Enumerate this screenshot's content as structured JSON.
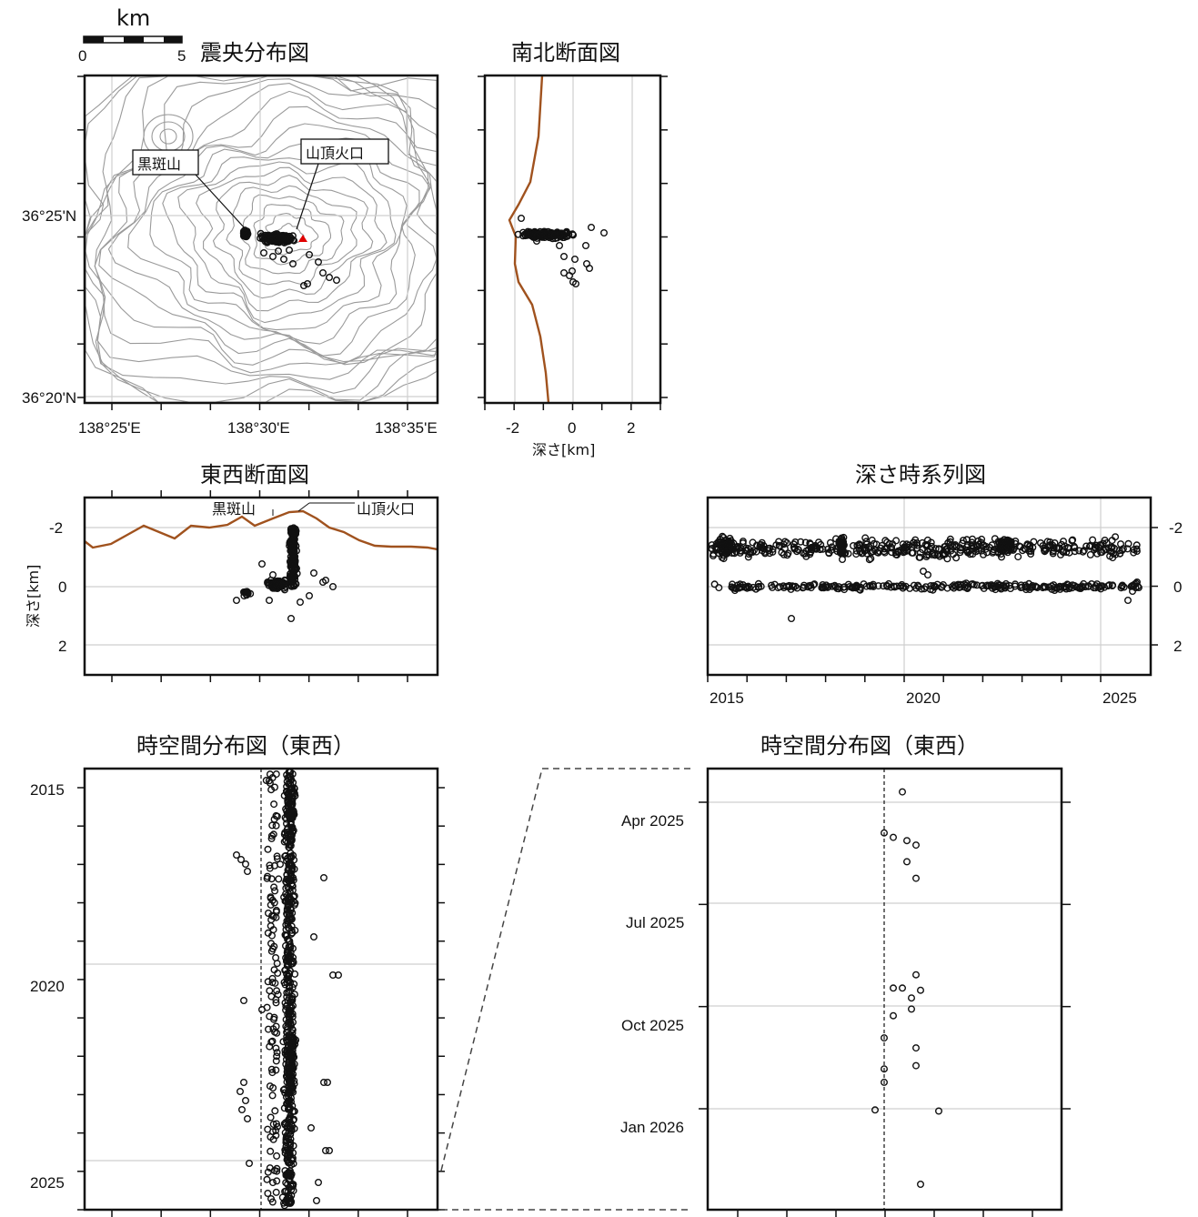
{
  "scale_bar": {
    "unit": "km",
    "label_min": "0",
    "label_max": "5"
  },
  "epicenter_map": {
    "title": "震央分布図",
    "lat_ticks": [
      "36°25'N",
      "36°20'N"
    ],
    "lon_ticks": [
      "138°25'E",
      "138°30'E",
      "138°35'E"
    ],
    "labels": {
      "kurofu": "黒斑山",
      "crater": "山頂火口"
    }
  },
  "ns_section": {
    "title": "南北断面図",
    "x_ticks": [
      "-2",
      "0",
      "2"
    ],
    "xlabel": "深さ[km]"
  },
  "ew_section": {
    "title": "東西断面図",
    "y_ticks": [
      "-2",
      "0",
      "2"
    ],
    "ylabel": "深さ[km]",
    "labels": {
      "kurofu": "黒斑山",
      "crater": "山頂火口"
    }
  },
  "depth_time": {
    "title": "深さ時系列図",
    "x_ticks": [
      "2015",
      "2020",
      "2025"
    ],
    "y_ticks": [
      "-2",
      "0",
      "2"
    ]
  },
  "spacetime_ew": {
    "title": "時空間分布図（東西）",
    "y_ticks": [
      "2015",
      "2020",
      "2025"
    ]
  },
  "spacetime_zoom": {
    "title": "時空間分布図（東西）",
    "y_ticks": [
      "Apr 2025",
      "Jul 2025",
      "Oct 2025",
      "Jan 2026"
    ]
  },
  "chart_data": [
    {
      "type": "scatter",
      "panel": "epicenter_map",
      "xlabel": "",
      "ylabel": "",
      "xlim": [
        138.4,
        138.6
      ],
      "ylim": [
        36.333,
        36.5
      ],
      "cluster_center": [
        138.515,
        36.413
      ],
      "crater": [
        138.523,
        36.406
      ]
    },
    {
      "type": "scatter",
      "panel": "ns_section",
      "xlabel": "深さ[km]",
      "xlim": [
        -3,
        3
      ],
      "note_depth_range_km": [
        -0.5,
        1.0
      ]
    },
    {
      "type": "scatter",
      "panel": "ew_section",
      "ylabel": "深さ[km]",
      "ylim": [
        3,
        -3
      ],
      "main_column_depth_km": [
        -2,
        0.3
      ]
    },
    {
      "type": "scatter",
      "panel": "depth_time",
      "xlim": [
        2015,
        2026.3
      ],
      "ylim": [
        3,
        -3
      ],
      "bands_km": [
        -1.2,
        0
      ]
    },
    {
      "type": "scatter",
      "panel": "spacetime_ew",
      "ylim": [
        2014.5,
        2026.3
      ]
    },
    {
      "type": "scatter",
      "panel": "spacetime_zoom",
      "y": [
        "2025-03-08",
        "2025-04-14",
        "2025-04-18",
        "2025-04-21",
        "2025-04-25",
        "2025-05-10",
        "2025-05-25",
        "2025-08-20",
        "2025-09-01",
        "2025-09-01",
        "2025-09-03",
        "2025-09-10",
        "2025-09-20",
        "2025-09-26",
        "2025-10-16",
        "2025-10-25",
        "2025-11-10",
        "2025-11-13",
        "2025-11-25",
        "2025-12-20",
        "2025-12-21",
        "2026-02-25"
      ],
      "x": [
        0.2,
        0.0,
        0.1,
        0.25,
        0.35,
        0.25,
        0.35,
        0.35,
        0.1,
        0.2,
        0.4,
        0.3,
        0.3,
        0.1,
        0.0,
        0.35,
        0.35,
        0.0,
        0.0,
        -0.1,
        0.6,
        0.4
      ]
    }
  ]
}
